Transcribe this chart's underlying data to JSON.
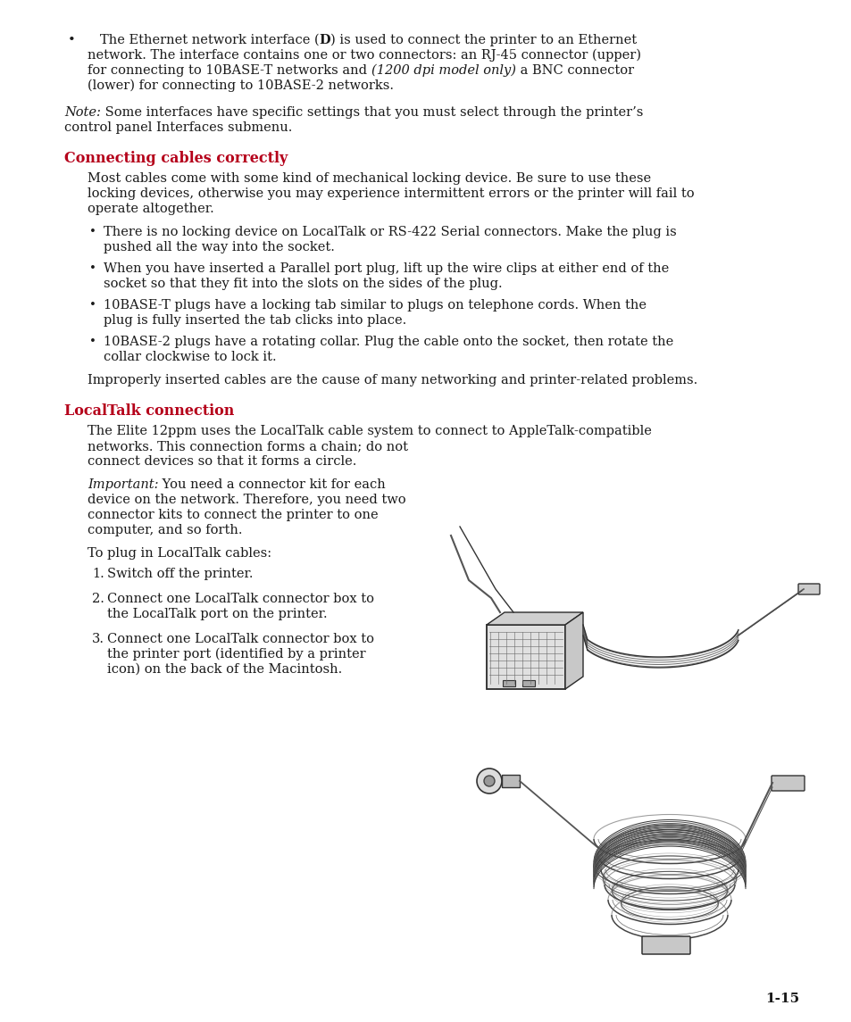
{
  "background_color": "#ffffff",
  "text_color": "#1a1a1a",
  "heading_color": "#b5001a",
  "font_size_body": 10.5,
  "font_size_heading": 11.5,
  "font_size_page_num": 11,
  "section1_heading": "Connecting cables correctly",
  "section2_heading": "LocalTalk connection",
  "improperly_text": "Improperly inserted cables are the cause of many networking and printer-related problems.",
  "toplug_text": "To plug in LocalTalk cables:",
  "page_number": "1-15"
}
